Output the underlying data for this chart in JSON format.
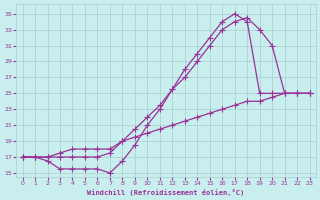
{
  "xlabel": "Windchill (Refroidissement éolien,°C)",
  "bg_color": "#c8eeed",
  "line_color": "#993399",
  "markersize": 2.5,
  "linewidth": 0.9,
  "xlim": [
    -0.5,
    23.5
  ],
  "ylim": [
    14.5,
    36.2
  ],
  "xticks": [
    0,
    1,
    2,
    3,
    4,
    5,
    6,
    7,
    8,
    9,
    10,
    11,
    12,
    13,
    14,
    15,
    16,
    17,
    18,
    19,
    20,
    21,
    22,
    23
  ],
  "yticks": [
    15,
    17,
    19,
    21,
    23,
    25,
    27,
    29,
    31,
    33,
    35
  ],
  "grid_color": "#aacccc",
  "line1_x": [
    0,
    1,
    2,
    3,
    4,
    5,
    6,
    7,
    8,
    9,
    10,
    11,
    12,
    13,
    14,
    15,
    16,
    17,
    18,
    19,
    20,
    21,
    22,
    23
  ],
  "line1_y": [
    17,
    17,
    16.5,
    15.5,
    15.5,
    15.5,
    15.5,
    15,
    16.5,
    18.5,
    21,
    23,
    25.5,
    28,
    30,
    32,
    34,
    35,
    34,
    25,
    25,
    25,
    25,
    25
  ],
  "line2_x": [
    0,
    1,
    2,
    3,
    4,
    5,
    6,
    7,
    8,
    9,
    10,
    11,
    12,
    13,
    14,
    15,
    16,
    17,
    18,
    19,
    20,
    21,
    22,
    23
  ],
  "line2_y": [
    17,
    17,
    17,
    17,
    17,
    17,
    17,
    17.5,
    19,
    20.5,
    22,
    23.5,
    25.5,
    27,
    29,
    31,
    33,
    34,
    34.5,
    33,
    31,
    25,
    25,
    25
  ],
  "line3_x": [
    0,
    1,
    2,
    3,
    4,
    5,
    6,
    7,
    8,
    9,
    10,
    11,
    12,
    13,
    14,
    15,
    16,
    17,
    18,
    19,
    20,
    21,
    22,
    23
  ],
  "line3_y": [
    17,
    17,
    17,
    17.5,
    18,
    18,
    18,
    18,
    19,
    19.5,
    20,
    20.5,
    21,
    21.5,
    22,
    22.5,
    23,
    23.5,
    24,
    24,
    24.5,
    25,
    25,
    25
  ]
}
